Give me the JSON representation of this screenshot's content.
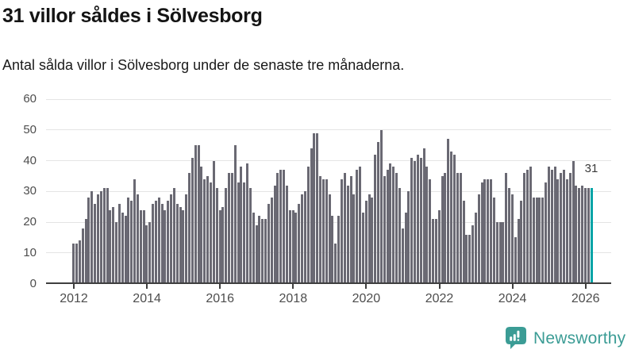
{
  "header": {
    "title": "31 villor såldes i Sölvesborg",
    "subtitle": "Antal sålda villor i Sölvesborg under de senaste tre månaderna."
  },
  "chart_data": {
    "type": "bar",
    "title": "31 villor såldes i Sölvesborg",
    "subtitle": "Antal sålda villor i Sölvesborg under de senaste tre månaderna.",
    "x_start": "2012",
    "x_end": "2026",
    "frequency_hint": "one bar per month",
    "values": [
      13,
      13,
      14,
      18,
      21,
      28,
      30,
      26,
      29,
      30,
      31,
      31,
      24,
      25,
      20,
      26,
      23,
      22,
      28,
      27,
      34,
      29,
      24,
      24,
      19,
      20,
      26,
      27,
      28,
      26,
      24,
      27,
      29,
      31,
      26,
      25,
      24,
      29,
      36,
      41,
      45,
      45,
      38,
      34,
      35,
      33,
      40,
      31,
      24,
      25,
      31,
      36,
      36,
      45,
      33,
      38,
      33,
      39,
      31,
      23,
      19,
      22,
      21,
      21,
      26,
      28,
      32,
      36,
      37,
      37,
      32,
      24,
      24,
      23,
      26,
      29,
      30,
      38,
      44,
      49,
      49,
      35,
      34,
      34,
      29,
      22,
      13,
      22,
      34,
      36,
      32,
      35,
      29,
      37,
      38,
      23,
      27,
      29,
      28,
      42,
      46,
      50,
      35,
      37,
      39,
      38,
      36,
      31,
      18,
      23,
      30,
      41,
      40,
      42,
      41,
      44,
      38,
      34,
      21,
      21,
      24,
      35,
      36,
      47,
      43,
      42,
      36,
      36,
      27,
      16,
      16,
      19,
      23,
      29,
      33,
      34,
      34,
      34,
      28,
      20,
      20,
      20,
      36,
      31,
      29,
      15,
      21,
      27,
      36,
      37,
      38,
      28,
      28,
      28,
      28,
      33,
      38,
      37,
      38,
      34,
      36,
      37,
      34,
      36,
      40,
      32,
      31,
      32,
      31,
      31,
      31
    ],
    "highlight_last_value": 31,
    "annotation_label": "31",
    "bar_color": "#6a6973",
    "highlight_color": "#00a3a6",
    "y_ticks": [
      0,
      10,
      20,
      30,
      40,
      50,
      60
    ],
    "ylim": [
      0,
      60
    ],
    "x_tick_labels": [
      "2012",
      "2014",
      "2016",
      "2018",
      "2020",
      "2022",
      "2024",
      "2026"
    ],
    "grid": true,
    "legend": "none"
  },
  "footer": {
    "logo_text": "Newsworthy",
    "logo_color": "#3b9c95",
    "logo_icon": "bar-chart-speech-bubble-icon"
  }
}
